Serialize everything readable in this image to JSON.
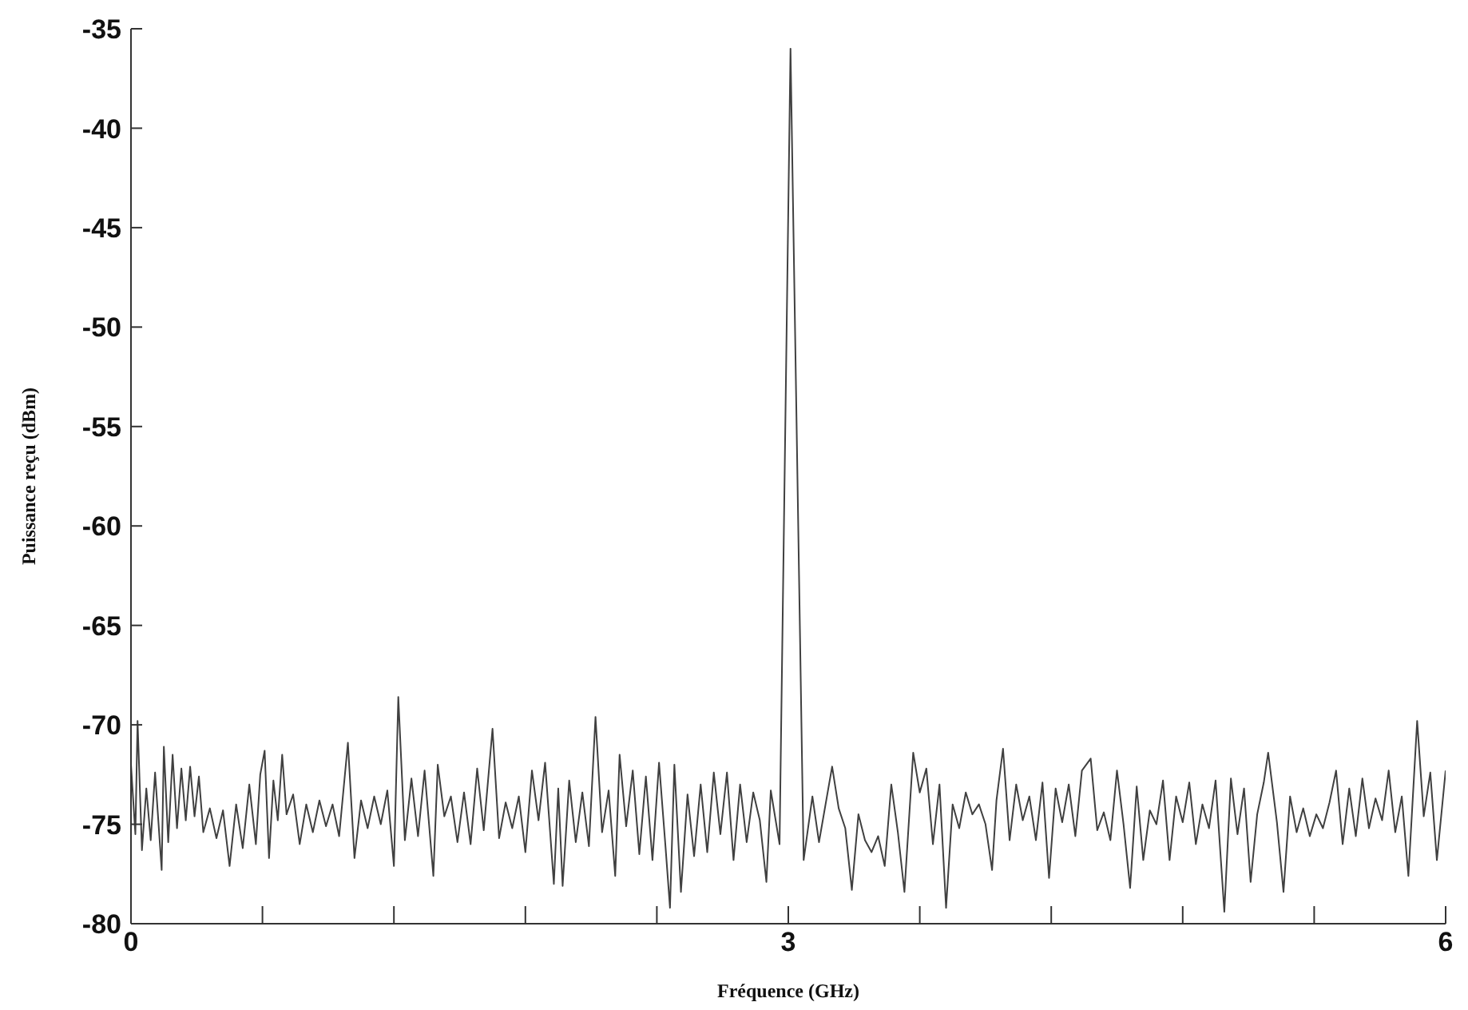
{
  "chart_data": {
    "type": "line",
    "xlabel": "Fréquence (GHz)",
    "ylabel": "Puissance reçu (dBm)",
    "x": [
      0,
      0.02,
      0.03,
      0.05,
      0.07,
      0.09,
      0.11,
      0.14,
      0.15,
      0.17,
      0.19,
      0.21,
      0.23,
      0.25,
      0.27,
      0.29,
      0.31,
      0.33,
      0.36,
      0.39,
      0.42,
      0.45,
      0.48,
      0.51,
      0.54,
      0.57,
      0.59,
      0.61,
      0.63,
      0.65,
      0.67,
      0.69,
      0.71,
      0.74,
      0.77,
      0.8,
      0.83,
      0.86,
      0.89,
      0.92,
      0.95,
      0.99,
      1.02,
      1.05,
      1.08,
      1.11,
      1.14,
      1.17,
      1.2,
      1.22,
      1.25,
      1.28,
      1.31,
      1.34,
      1.38,
      1.4,
      1.43,
      1.46,
      1.49,
      1.52,
      1.55,
      1.58,
      1.61,
      1.65,
      1.68,
      1.71,
      1.74,
      1.77,
      1.8,
      1.83,
      1.86,
      1.89,
      1.93,
      1.95,
      1.97,
      2,
      2.03,
      2.06,
      2.09,
      2.12,
      2.15,
      2.18,
      2.21,
      2.23,
      2.26,
      2.29,
      2.32,
      2.35,
      2.38,
      2.41,
      2.44,
      2.46,
      2.48,
      2.51,
      2.54,
      2.57,
      2.6,
      2.63,
      2.66,
      2.69,
      2.72,
      2.75,
      2.78,
      2.81,
      2.84,
      2.87,
      2.9,
      2.92,
      2.96,
      3.01,
      3.07,
      3.11,
      3.14,
      3.17,
      3.2,
      3.23,
      3.26,
      3.29,
      3.32,
      3.35,
      3.38,
      3.41,
      3.44,
      3.47,
      3.5,
      3.53,
      3.57,
      3.6,
      3.63,
      3.66,
      3.69,
      3.72,
      3.75,
      3.78,
      3.81,
      3.84,
      3.87,
      3.9,
      3.93,
      3.95,
      3.98,
      4.01,
      4.04,
      4.07,
      4.1,
      4.13,
      4.16,
      4.19,
      4.22,
      4.25,
      4.28,
      4.31,
      4.34,
      4.38,
      4.41,
      4.44,
      4.47,
      4.5,
      4.53,
      4.56,
      4.59,
      4.62,
      4.65,
      4.68,
      4.71,
      4.74,
      4.77,
      4.8,
      4.83,
      4.86,
      4.89,
      4.92,
      4.95,
      4.99,
      5.02,
      5.05,
      5.08,
      5.11,
      5.14,
      5.17,
      5.19,
      5.23,
      5.26,
      5.29,
      5.32,
      5.35,
      5.38,
      5.41,
      5.44,
      5.47,
      5.5,
      5.53,
      5.56,
      5.59,
      5.62,
      5.65,
      5.68,
      5.71,
      5.74,
      5.77,
      5.8,
      5.83,
      5.87,
      5.9,
      5.93,
      5.96,
      6
    ],
    "series": [
      {
        "color": "#404040",
        "values": [
          -72,
          -75.5,
          -69.8,
          -76.3,
          -73.2,
          -75.8,
          -72.4,
          -77.3,
          -71.1,
          -75.9,
          -71.5,
          -75.2,
          -72.2,
          -74.8,
          -72.1,
          -74.6,
          -72.6,
          -75.4,
          -74.2,
          -75.7,
          -74.3,
          -77.1,
          -74,
          -76.2,
          -73,
          -76,
          -72.5,
          -71.3,
          -76.7,
          -72.8,
          -74.8,
          -71.5,
          -74.5,
          -73.5,
          -76,
          -74,
          -75.4,
          -73.8,
          -75.1,
          -74,
          -75.6,
          -70.9,
          -76.7,
          -73.8,
          -75.2,
          -73.6,
          -75,
          -73.3,
          -77.1,
          -68.6,
          -75.8,
          -72.7,
          -75.6,
          -72.3,
          -77.6,
          -72,
          -74.6,
          -73.6,
          -75.9,
          -73.4,
          -76,
          -72.2,
          -75.3,
          -70.2,
          -75.7,
          -73.9,
          -75.2,
          -73.6,
          -76.4,
          -72.3,
          -74.8,
          -71.9,
          -78,
          -73.2,
          -78.1,
          -72.8,
          -75.9,
          -73.4,
          -76.1,
          -69.6,
          -75.4,
          -73.3,
          -77.6,
          -71.5,
          -75.1,
          -72.3,
          -76.5,
          -72.6,
          -76.8,
          -71.9,
          -76.2,
          -79.2,
          -72,
          -78.4,
          -73.5,
          -76.6,
          -73,
          -76.4,
          -72.4,
          -75.5,
          -72.4,
          -76.8,
          -73,
          -75.9,
          -73.4,
          -74.8,
          -77.9,
          -73.3,
          -76,
          -36,
          -76.8,
          -73.6,
          -75.9,
          -74,
          -72.1,
          -74.2,
          -75.2,
          -78.3,
          -74.5,
          -75.8,
          -76.4,
          -75.6,
          -77.1,
          -73,
          -75.4,
          -78.4,
          -71.4,
          -73.4,
          -72.2,
          -76,
          -73,
          -79.2,
          -74,
          -75.2,
          -73.4,
          -74.5,
          -74,
          -75,
          -77.3,
          -73.8,
          -71.2,
          -75.8,
          -73,
          -74.8,
          -73.6,
          -75.8,
          -72.9,
          -77.7,
          -73.2,
          -74.9,
          -73,
          -75.6,
          -72.3,
          -71.7,
          -75.3,
          -74.4,
          -75.8,
          -72.3,
          -75,
          -78.2,
          -73.1,
          -76.8,
          -74.3,
          -75,
          -72.8,
          -76.8,
          -73.6,
          -74.9,
          -72.9,
          -76,
          -74,
          -75.2,
          -72.8,
          -79.4,
          -72.7,
          -75.5,
          -73.2,
          -77.9,
          -74.5,
          -72.9,
          -71.4,
          -74.9,
          -78.4,
          -73.6,
          -75.4,
          -74.2,
          -75.6,
          -74.5,
          -75.2,
          -73.9,
          -72.3,
          -76,
          -73.2,
          -75.6,
          -72.7,
          -75.2,
          -73.7,
          -74.8,
          -72.3,
          -75.4,
          -73.6,
          -77.6,
          -69.8,
          -74.6,
          -72.4,
          -76.8,
          -72.3
        ]
      }
    ],
    "xlim": [
      0,
      6
    ],
    "xticks": [
      0,
      {
        "value": 0.6,
        "label": null
      },
      {
        "value": 1.2,
        "label": null
      },
      {
        "value": 1.8,
        "label": null
      },
      {
        "value": 2.4,
        "label": null
      },
      3,
      {
        "value": 3.6,
        "label": null
      },
      {
        "value": 4.2,
        "label": null
      },
      {
        "value": 4.8,
        "label": null
      },
      {
        "value": 5.4,
        "label": null
      },
      6
    ],
    "ylim": [
      -80,
      -35
    ],
    "yticks": [
      -80,
      -75,
      -70,
      -65,
      -60,
      -55,
      -50,
      -45,
      -40,
      -35
    ],
    "marker": "none",
    "line_style": "solid"
  }
}
